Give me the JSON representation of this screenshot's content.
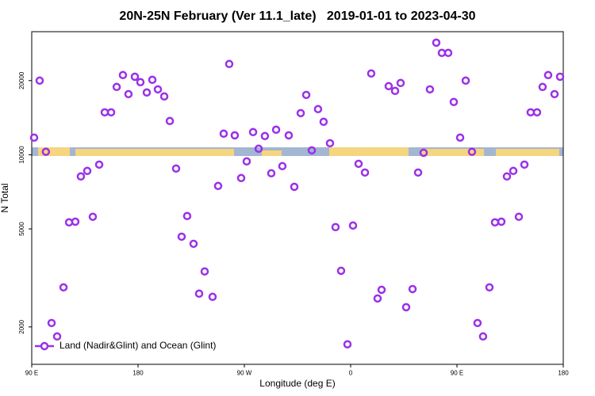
{
  "chart_data": {
    "type": "scatter",
    "title": "20N-25N February (Ver 11.1_late)   2019-01-01 to 2023-04-30",
    "x_label": "Longitude (deg E)",
    "y_label": "N Total",
    "log_y": true,
    "legend": "lower left",
    "xlim": [
      90,
      540
    ],
    "xticks": [
      {
        "value": 90,
        "label": "90 E"
      },
      180,
      {
        "value": 270,
        "label": "90 W"
      },
      {
        "value": 360,
        "label": "0"
      },
      {
        "value": 450,
        "label": "90 E"
      },
      {
        "value": 540,
        "label": "180"
      }
    ],
    "ylim": [
      1410,
      31600
    ],
    "yticks": [
      2000,
      5000,
      10000,
      20000
    ],
    "series": [
      {
        "name": "Land (Nadir&Glint) and Ocean (Glint)",
        "color": "#9b30e8",
        "x": [
          92,
          96.7,
          102,
          106.8,
          111.5,
          116.9,
          121.6,
          126.9,
          131.6,
          137,
          141.7,
          147.1,
          151.8,
          157.2,
          161.9,
          167.2,
          171.9,
          177.3,
          182,
          187.4,
          192.1,
          196.8,
          202.2,
          206.9,
          212.2,
          216.9,
          221.6,
          227,
          231.7,
          236.4,
          243.1,
          247.8,
          252.5,
          257.2,
          261.9,
          267.3,
          272,
          277.4,
          282.1,
          287.4,
          292.8,
          296.9,
          302.2,
          307.6,
          312.3,
          317.7,
          322.4,
          327.1,
          332.4,
          337.1,
          342.5,
          347.2,
          351.9,
          357.3,
          362,
          366.7,
          372.1,
          377.4,
          382.8,
          386.2,
          392.2,
          397.6,
          402.3,
          407,
          412.4,
          417.1,
          421.8,
          427.1,
          432.5,
          437.2,
          442.6,
          447.3,
          452.7,
          457.4,
          462.7,
          467.4,
          472.1,
          477.5,
          482.2,
          487.6,
          492.3,
          497.7,
          502.4,
          507.1,
          512.4,
          517.8,
          522.5,
          527.2,
          532.6,
          537.3
        ],
        "values": [
          11740,
          20000,
          10280,
          2075,
          1830,
          2895,
          5315,
          5350,
          8165,
          8600,
          5600,
          9120,
          14870,
          14870,
          18850,
          21060,
          17630,
          20740,
          19710,
          17900,
          20150,
          18430,
          17250,
          13710,
          8790,
          4650,
          5640,
          4350,
          2730,
          3360,
          2650,
          7470,
          12180,
          23360,
          11990,
          8045,
          9400,
          12360,
          10580,
          11910,
          8410,
          12640,
          8990,
          11990,
          7410,
          14760,
          17500,
          10420,
          15320,
          13610,
          11140,
          5085,
          3380,
          1700,
          5160,
          9190,
          8470,
          21380,
          2610,
          2830,
          18990,
          18170,
          19560,
          2405,
          2850,
          8470,
          10190,
          18430,
          28510,
          25920,
          25920,
          16380,
          11740,
          20000,
          10280,
          2075,
          1830,
          2895,
          5315,
          5350,
          8165,
          8600,
          5600,
          9120,
          14870,
          14870,
          18850,
          21060,
          17630,
          20740
        ]
      }
    ]
  }
}
